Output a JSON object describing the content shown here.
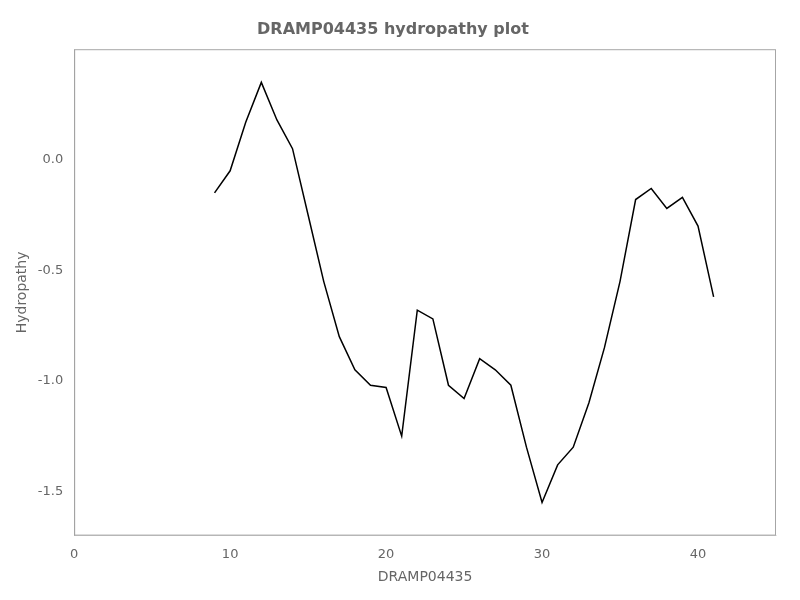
{
  "chart_data": {
    "type": "line",
    "title": "DRAMP04435 hydropathy plot",
    "xlabel": "DRAMP04435",
    "ylabel": "Hydropathy",
    "x": [
      9,
      10,
      11,
      12,
      13,
      14,
      15,
      16,
      17,
      18,
      19,
      20,
      21,
      22,
      23,
      24,
      25,
      26,
      27,
      28,
      29,
      30,
      31,
      32,
      33,
      34,
      35,
      36,
      37,
      38,
      39,
      40,
      41
    ],
    "values": [
      -0.15,
      -0.05,
      0.17,
      0.35,
      0.18,
      0.05,
      -0.25,
      -0.55,
      -0.8,
      -0.95,
      -1.02,
      -1.03,
      -1.25,
      -0.68,
      -0.72,
      -1.02,
      -1.08,
      -0.9,
      -0.95,
      -1.02,
      -1.3,
      -1.55,
      -1.38,
      -1.3,
      -1.1,
      -0.85,
      -0.55,
      -0.18,
      -0.13,
      -0.22,
      -0.17,
      -0.3,
      -0.62
    ],
    "color": "black",
    "xlim": [
      0,
      45
    ],
    "ylim": [
      -1.7,
      0.5
    ],
    "xticks": [
      0,
      10,
      20,
      30,
      40
    ],
    "yticks": [
      {
        "value": 0.0,
        "label": "0.0"
      },
      -0.5,
      {
        "value": -1.0,
        "label": "-1.0"
      },
      -1.5
    ],
    "grid": false
  }
}
